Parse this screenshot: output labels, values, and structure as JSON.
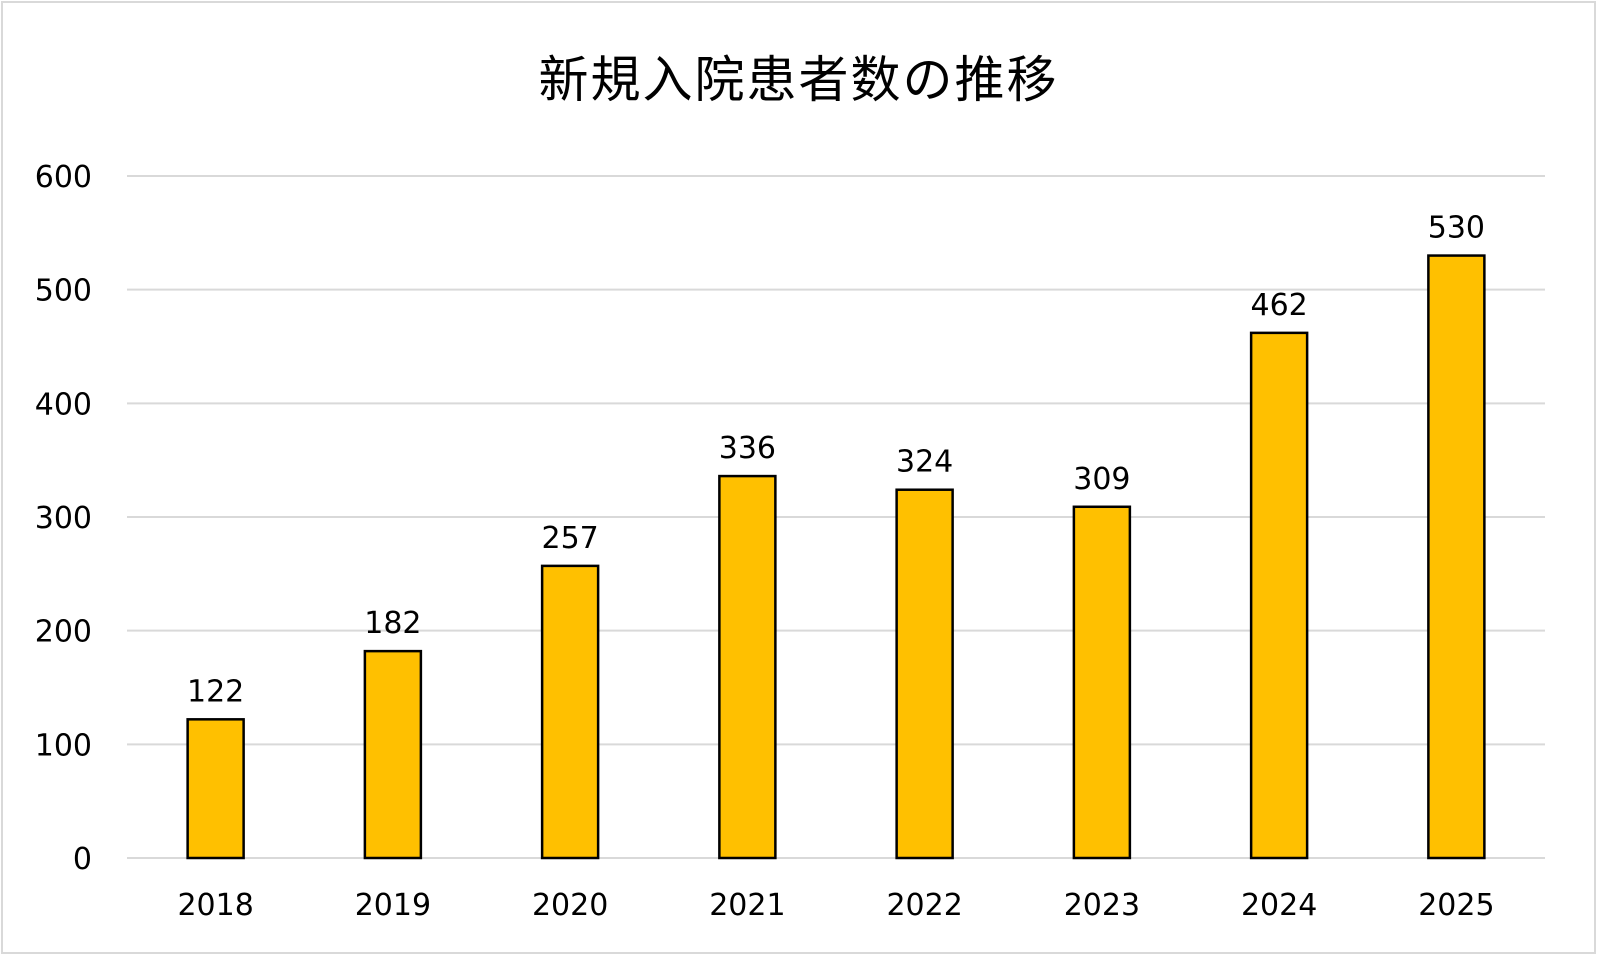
{
  "chart_data": {
    "type": "bar",
    "title": "新規入院患者数の推移",
    "categories": [
      "2018",
      "2019",
      "2020",
      "2021",
      "2022",
      "2023",
      "2024",
      "2025"
    ],
    "values": [
      122,
      182,
      257,
      336,
      324,
      309,
      462,
      530
    ],
    "data_labels": true,
    "xlabel": "",
    "ylabel": "",
    "ylim": [
      0,
      600
    ],
    "yticks": [
      0,
      100,
      200,
      300,
      400,
      500,
      600
    ],
    "grid": true,
    "legend": "none",
    "colors": {
      "bar_fill": "#FFC000",
      "bar_stroke": "#000000",
      "grid": "#d9d9d9"
    }
  }
}
